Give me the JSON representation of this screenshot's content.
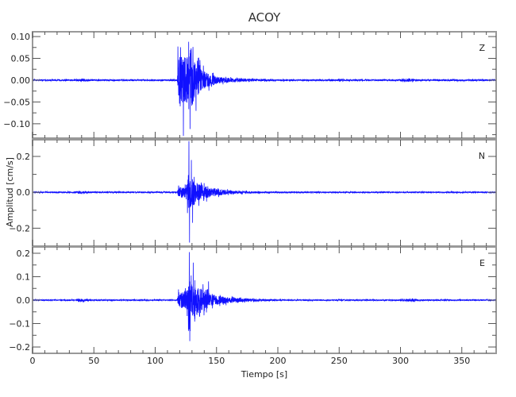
{
  "chart_data": {
    "type": "line",
    "title": "ACOY",
    "xlabel": "Tiempo [s]",
    "ylabel": "Amplitud [cm/s]",
    "xlim": [
      0,
      378
    ],
    "xticks": [
      0,
      50,
      100,
      150,
      200,
      250,
      300,
      350
    ],
    "grid": false,
    "series_color": "#0000ff",
    "panels": [
      {
        "name": "Z",
        "ylim": [
          -0.133,
          0.111
        ],
        "yticks": [
          0.1,
          0.05,
          0.0,
          -0.05,
          -0.1
        ],
        "ytick_labels": [
          "0.10",
          "0.05",
          "0.00",
          "-0.05",
          "-0.10"
        ],
        "envelope": [
          [
            0,
            0.0015
          ],
          [
            35,
            0.0015
          ],
          [
            38,
            0.003
          ],
          [
            45,
            0.003
          ],
          [
            48,
            0.0015
          ],
          [
            118,
            0.0015
          ],
          [
            119,
            0.07
          ],
          [
            122,
            0.05
          ],
          [
            126,
            0.06
          ],
          [
            128,
            0.08
          ],
          [
            132,
            0.05
          ],
          [
            140,
            0.02
          ],
          [
            150,
            0.008
          ],
          [
            165,
            0.004
          ],
          [
            200,
            0.0015
          ],
          [
            248,
            0.0015
          ],
          [
            250,
            0.003
          ],
          [
            255,
            0.0015
          ],
          [
            298,
            0.0015
          ],
          [
            302,
            0.003
          ],
          [
            310,
            0.003
          ],
          [
            315,
            0.0015
          ],
          [
            378,
            0.0015
          ]
        ],
        "peaks": [
          [
            118.5,
            0.077
          ],
          [
            123.0,
            -0.128
          ],
          [
            127.3,
            0.088
          ],
          [
            128.4,
            -0.112
          ]
        ]
      },
      {
        "name": "N",
        "ylim": [
          -0.3,
          0.293
        ],
        "yticks": [
          0.2,
          0.0,
          -0.2
        ],
        "ytick_labels": [
          "0.2",
          "0.0",
          "-0.2"
        ],
        "envelope": [
          [
            0,
            0.003
          ],
          [
            35,
            0.003
          ],
          [
            38,
            0.006
          ],
          [
            45,
            0.006
          ],
          [
            48,
            0.003
          ],
          [
            118,
            0.003
          ],
          [
            119,
            0.03
          ],
          [
            125,
            0.03
          ],
          [
            127,
            0.1
          ],
          [
            130,
            0.08
          ],
          [
            135,
            0.05
          ],
          [
            145,
            0.025
          ],
          [
            160,
            0.01
          ],
          [
            180,
            0.005
          ],
          [
            200,
            0.003
          ],
          [
            378,
            0.003
          ]
        ],
        "peaks": [
          [
            127.5,
            0.285
          ],
          [
            128.0,
            -0.28
          ],
          [
            129.5,
            0.18
          ],
          [
            130.5,
            -0.17
          ]
        ]
      },
      {
        "name": "E",
        "ylim": [
          -0.227,
          0.227
        ],
        "yticks": [
          0.2,
          0.1,
          0.0,
          -0.1,
          -0.2
        ],
        "ytick_labels": [
          "0.2",
          "0.1",
          "0.0",
          "-0.1",
          "-0.2"
        ],
        "envelope": [
          [
            0,
            0.002
          ],
          [
            35,
            0.002
          ],
          [
            38,
            0.006
          ],
          [
            45,
            0.006
          ],
          [
            48,
            0.002
          ],
          [
            118,
            0.002
          ],
          [
            119,
            0.03
          ],
          [
            125,
            0.035
          ],
          [
            127,
            0.09
          ],
          [
            132,
            0.07
          ],
          [
            140,
            0.04
          ],
          [
            150,
            0.02
          ],
          [
            165,
            0.008
          ],
          [
            190,
            0.004
          ],
          [
            210,
            0.002
          ],
          [
            248,
            0.002
          ],
          [
            250,
            0.005
          ],
          [
            256,
            0.002
          ],
          [
            298,
            0.002
          ],
          [
            302,
            0.005
          ],
          [
            312,
            0.005
          ],
          [
            316,
            0.002
          ],
          [
            378,
            0.002
          ]
        ],
        "peaks": [
          [
            127.8,
            0.205
          ],
          [
            128.2,
            -0.175
          ],
          [
            131,
            0.16
          ],
          [
            143.5,
            0.08
          ]
        ]
      }
    ]
  }
}
